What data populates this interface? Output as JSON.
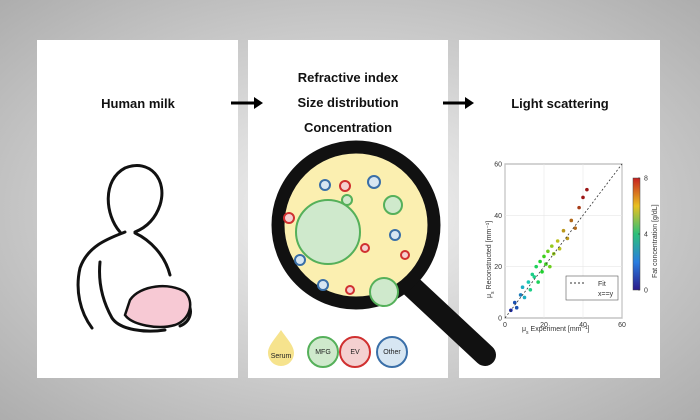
{
  "panels": [
    {
      "title": "Human milk"
    },
    {
      "lines": [
        "Refractive index",
        "Size distribution",
        "Concentration"
      ],
      "legend": [
        "Serum",
        "MFG",
        "EV",
        "Other"
      ]
    },
    {
      "title": "Light scattering",
      "chart": {
        "type": "scatter",
        "x": [
          3,
          5,
          6,
          8,
          9,
          10,
          12,
          13,
          14,
          15,
          16,
          17,
          18,
          19,
          20,
          21,
          22,
          23,
          24,
          25,
          27,
          28,
          30,
          32,
          34,
          36,
          38,
          40,
          42
        ],
        "y": [
          3,
          6,
          4,
          9,
          12,
          8,
          14,
          11,
          17,
          16,
          20,
          14,
          22,
          18,
          24,
          21,
          26,
          20,
          28,
          25,
          30,
          27,
          34,
          31,
          38,
          35,
          43,
          47,
          50
        ],
        "fat": [
          0.5,
          1,
          1,
          1.5,
          2,
          2,
          2.5,
          3,
          3,
          3,
          3.5,
          3.5,
          4,
          4,
          4.5,
          4.5,
          5,
          5,
          5.5,
          5.5,
          6,
          6,
          6.5,
          6.5,
          7,
          7,
          7.5,
          8,
          8
        ],
        "xlim": [
          0,
          60
        ],
        "ylim": [
          0,
          60
        ],
        "xticks": [
          0,
          20,
          40,
          60
        ],
        "yticks": [
          0,
          20,
          40,
          60
        ],
        "clim": [
          0,
          8
        ],
        "cticks": [
          0,
          4,
          8
        ],
        "xlabel_symbol": "μ",
        "xlabel_sub": "s",
        "xlabel_text": "Experiment [mm⁻¹]",
        "ylabel_symbol": "μ",
        "ylabel_sub": "s",
        "ylabel_text": "Reconstructed [mm⁻¹]",
        "clabel": "Fat concentration [g/dL]",
        "legend": [
          "Fit",
          "x==y"
        ]
      }
    }
  ]
}
